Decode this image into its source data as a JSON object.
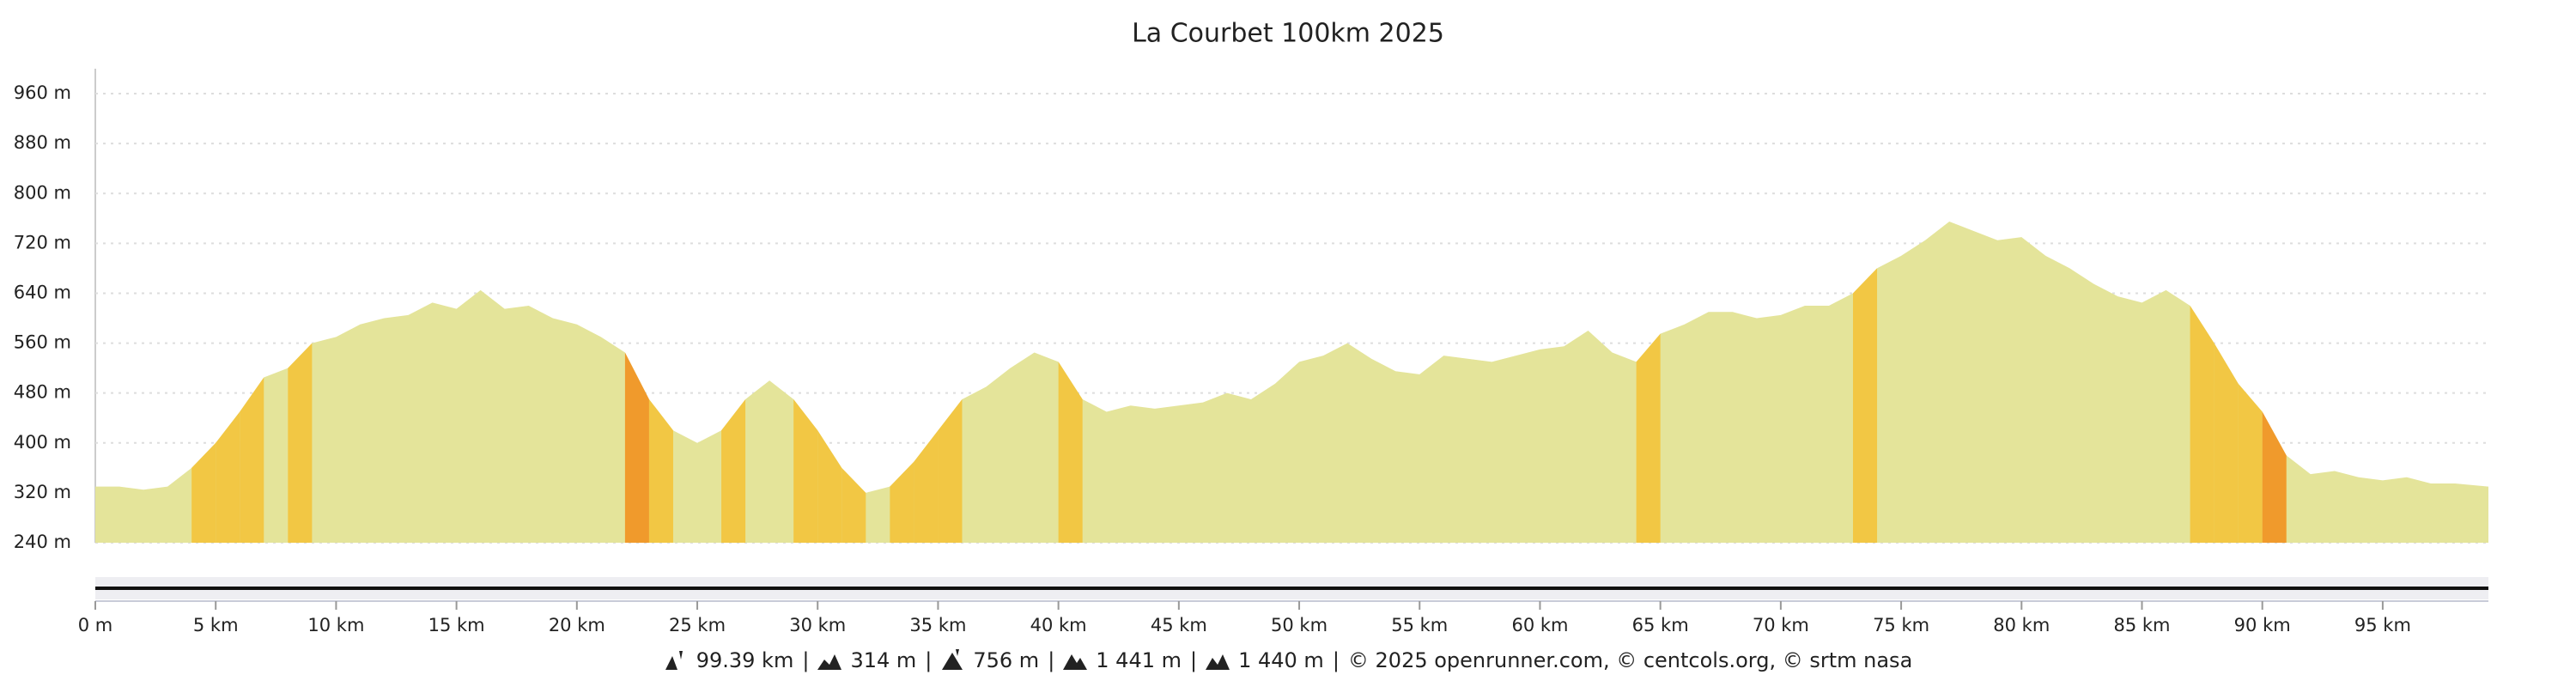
{
  "chart_data": {
    "type": "area",
    "title": "La Courbet 100km 2025",
    "x": [
      0,
      1,
      2,
      3,
      4,
      5,
      6,
      7,
      8,
      9,
      10,
      11,
      12,
      13,
      14,
      15,
      16,
      17,
      18,
      19,
      20,
      21,
      22,
      23,
      24,
      25,
      26,
      27,
      28,
      29,
      30,
      31,
      32,
      33,
      34,
      35,
      36,
      37,
      38,
      39,
      40,
      41,
      42,
      43,
      44,
      45,
      46,
      47,
      48,
      49,
      50,
      51,
      52,
      53,
      54,
      55,
      56,
      57,
      58,
      59,
      60,
      61,
      62,
      63,
      64,
      65,
      66,
      67,
      68,
      69,
      70,
      71,
      72,
      73,
      74,
      75,
      76,
      77,
      78,
      79,
      80,
      81,
      82,
      83,
      84,
      85,
      86,
      87,
      88,
      89,
      90,
      91,
      92,
      93,
      94,
      95,
      96,
      97,
      98,
      99.39
    ],
    "values": [
      330,
      330,
      325,
      330,
      360,
      400,
      450,
      505,
      520,
      560,
      570,
      590,
      600,
      605,
      625,
      615,
      645,
      615,
      620,
      600,
      590,
      570,
      545,
      470,
      420,
      400,
      420,
      470,
      500,
      470,
      420,
      360,
      320,
      330,
      370,
      420,
      470,
      490,
      520,
      545,
      530,
      470,
      450,
      460,
      455,
      460,
      465,
      480,
      470,
      495,
      530,
      540,
      560,
      535,
      515,
      510,
      540,
      535,
      530,
      540,
      550,
      555,
      580,
      545,
      530,
      575,
      590,
      610,
      610,
      600,
      605,
      620,
      620,
      640,
      680,
      700,
      725,
      755,
      740,
      725,
      730,
      700,
      680,
      655,
      635,
      625,
      645,
      620,
      560,
      495,
      450,
      380,
      350,
      355,
      345,
      340,
      345,
      335,
      335,
      330
    ],
    "color": "#e4e49a",
    "xlim": [
      0,
      99.39
    ],
    "ylim": [
      240,
      1000
    ],
    "yticks": [
      {
        "value": 240,
        "label": "240 m"
      },
      {
        "value": 320,
        "label": "320 m"
      },
      {
        "value": 400,
        "label": "400 m"
      },
      {
        "value": 480,
        "label": "480 m"
      },
      {
        "value": 560,
        "label": "560 m"
      },
      {
        "value": 640,
        "label": "640 m"
      },
      {
        "value": 720,
        "label": "720 m"
      },
      {
        "value": 800,
        "label": "800 m"
      },
      {
        "value": 880,
        "label": "880 m"
      },
      {
        "value": 960,
        "label": "960 m"
      }
    ],
    "xticks": [
      {
        "value": 0,
        "label": "0 m"
      },
      {
        "value": 5,
        "label": "5 km"
      },
      {
        "value": 10,
        "label": "10 km"
      },
      {
        "value": 15,
        "label": "15 km"
      },
      {
        "value": 20,
        "label": "20 km"
      },
      {
        "value": 25,
        "label": "25 km"
      },
      {
        "value": 30,
        "label": "30 km"
      },
      {
        "value": 35,
        "label": "35 km"
      },
      {
        "value": 40,
        "label": "40 km"
      },
      {
        "value": 45,
        "label": "45 km"
      },
      {
        "value": 50,
        "label": "50 km"
      },
      {
        "value": 55,
        "label": "55 km"
      },
      {
        "value": 60,
        "label": "60 km"
      },
      {
        "value": 65,
        "label": "65 km"
      },
      {
        "value": 70,
        "label": "70 km"
      },
      {
        "value": 75,
        "label": "75 km"
      },
      {
        "value": 80,
        "label": "80 km"
      },
      {
        "value": 85,
        "label": "85 km"
      },
      {
        "value": 90,
        "label": "90 km"
      },
      {
        "value": 95,
        "label": "95 km"
      }
    ],
    "grid": true,
    "stats": [
      "99.39 km",
      "314 m",
      "756 m",
      "1 441 m",
      "1 440 m"
    ],
    "separator": "|",
    "credits": "© 2025 openrunner.com, © centcols.org, © srtm nasa"
  }
}
